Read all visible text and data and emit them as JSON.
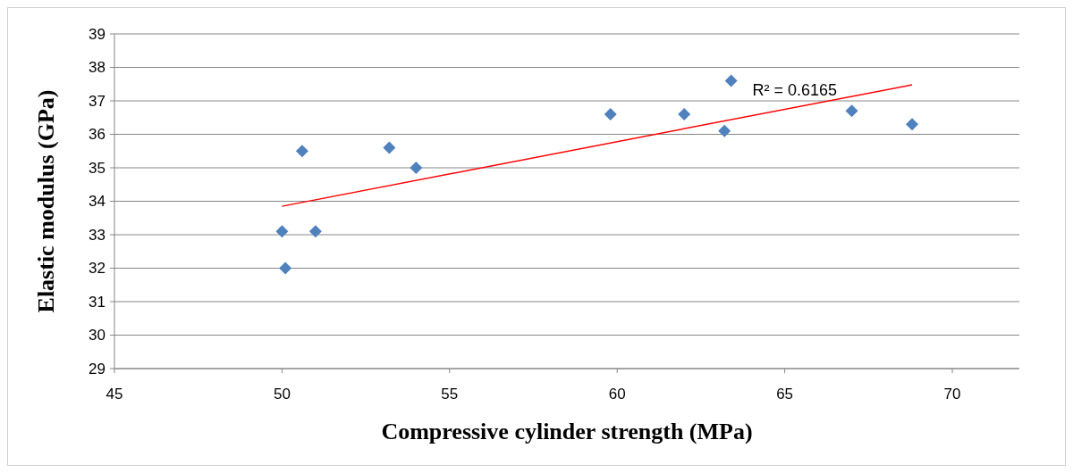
{
  "chart_data": {
    "type": "scatter",
    "xlabel": "Compressive cylinder strength (MPa)",
    "ylabel": "Elastic modulus (GPa)",
    "xlim": [
      45,
      72
    ],
    "xticks": [
      45,
      50,
      55,
      60,
      65,
      70
    ],
    "ylim": [
      29,
      39
    ],
    "yticks": [
      29,
      30,
      31,
      32,
      33,
      34,
      35,
      36,
      37,
      38,
      39
    ],
    "grid": "y",
    "series": [
      {
        "marker": "diamond",
        "color": "#4f81bd",
        "x": [
          50.0,
          50.1,
          50.6,
          51.0,
          53.2,
          54.0,
          59.8,
          62.0,
          63.2,
          63.4,
          67.0,
          68.8
        ],
        "values": [
          33.1,
          32.0,
          35.5,
          33.1,
          35.6,
          35.0,
          36.6,
          36.6,
          36.1,
          37.6,
          36.7,
          36.3
        ]
      },
      {
        "type": "line",
        "color": "#ff0000",
        "x": [
          50.0,
          68.8
        ],
        "values": [
          33.85,
          37.48
        ]
      }
    ],
    "annotations": [
      "R² = 0.6165"
    ]
  }
}
